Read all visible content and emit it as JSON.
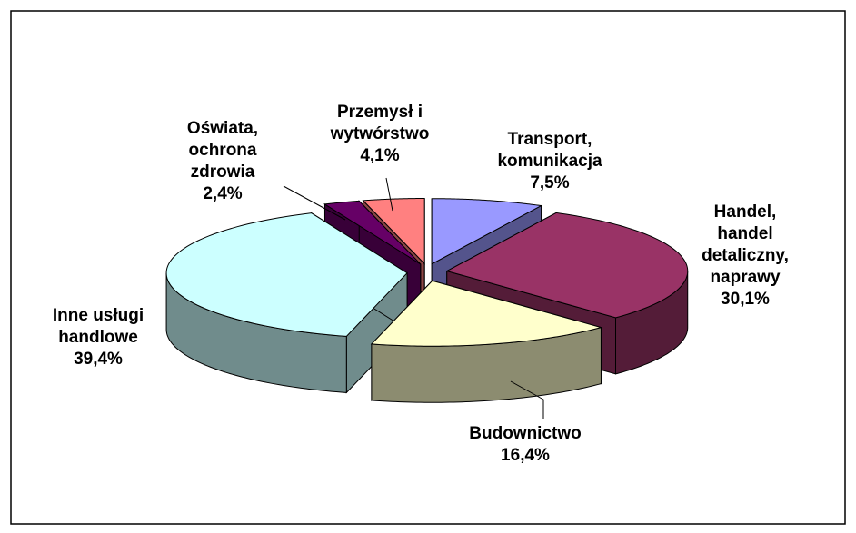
{
  "chart_data": {
    "type": "pie3d",
    "categories": [
      "Transport,\nkomunikacja",
      "Handel,\nhandel\ndetaliczny,\nnaprawy",
      "Budownictwo",
      "Inne usługi\nhandlowe",
      "Oświata,\nochrona\nzdrowia",
      "Przemysł i\nwytwórstwo"
    ],
    "values": [
      7.5,
      30.1,
      16.4,
      39.4,
      2.4,
      4.1
    ],
    "value_labels": [
      "7,5%",
      "30,1%",
      "16,4%",
      "39,4%",
      "2,4%",
      "4,1%"
    ],
    "colors": [
      "#9999ff",
      "#993366",
      "#ffffcc",
      "#ccffff",
      "#660066",
      "#ff8080"
    ]
  }
}
